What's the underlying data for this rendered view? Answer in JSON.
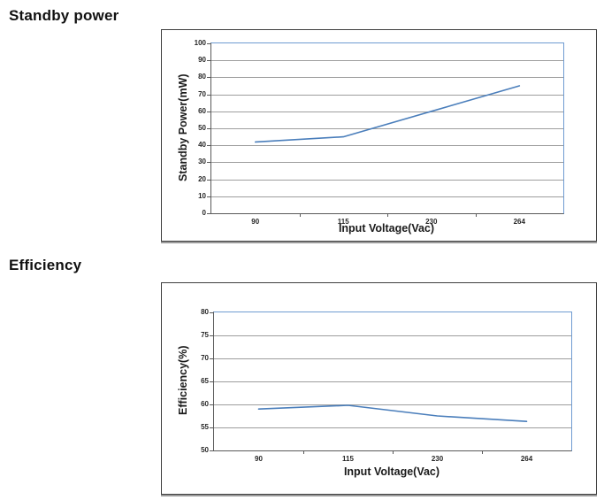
{
  "colors": {
    "series_line": "#4a7ebb",
    "plot_border": "#6f9bd1",
    "gridline": "#9e9e9e",
    "axis_line": "#595959",
    "tick_text": "#262626",
    "title_text": "#1a1a1a",
    "box_border": "#3f3f3f",
    "background": "#ffffff"
  },
  "chart_data": [
    {
      "type": "line",
      "title": "Standby power",
      "categories": [
        "90",
        "115",
        "230",
        "264"
      ],
      "values": [
        42,
        45,
        60,
        75
      ],
      "xlabel": "Input Voltage(Vac)",
      "ylabel": "Standby Power(mW)",
      "ylim": [
        0,
        100
      ],
      "ystep": 10,
      "grid": true,
      "legend": "none"
    },
    {
      "type": "line",
      "title": "Efficiency",
      "categories": [
        "90",
        "115",
        "230",
        "264"
      ],
      "values": [
        59,
        59.8,
        57.5,
        56.3
      ],
      "xlabel": "Input Voltage(Vac)",
      "ylabel": "Efficiency(%)",
      "ylim": [
        50,
        80
      ],
      "ystep": 5,
      "grid": true,
      "legend": "none"
    }
  ]
}
